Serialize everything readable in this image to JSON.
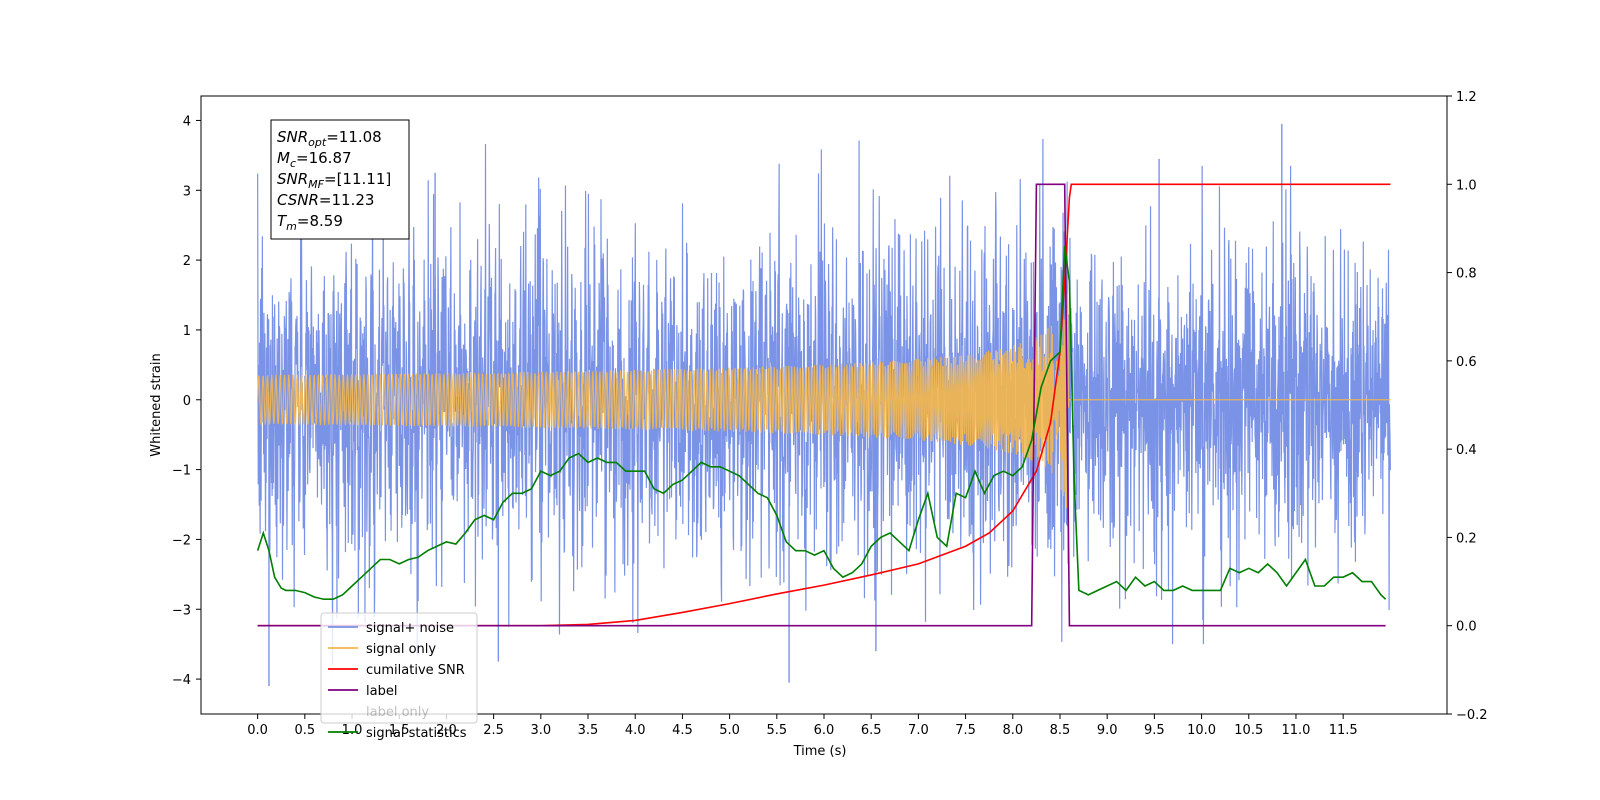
{
  "chart_data": {
    "type": "line",
    "xlabel": "Time (s)",
    "ylabel": "Whitened strain",
    "xlim": [
      -0.6,
      12.6
    ],
    "ylim": [
      -4.5,
      4.35
    ],
    "ylim_right": [
      -0.2,
      1.2
    ],
    "x_ticks": [
      "0.0",
      "0.5",
      "1.0",
      "1.5",
      "2.0",
      "2.5",
      "3.0",
      "3.5",
      "4.0",
      "4.5",
      "5.0",
      "5.5",
      "6.0",
      "6.5",
      "7.0",
      "7.5",
      "8.0",
      "8.5",
      "9.0",
      "9.5",
      "10.0",
      "10.5",
      "11.0",
      "11.5"
    ],
    "y_ticks_left": [
      "4",
      "3",
      "2",
      "1",
      "0",
      "−1",
      "−2",
      "−3",
      "−4"
    ],
    "y_ticks_right": [
      "1.2",
      "1.0",
      "0.8",
      "0.6",
      "0.4",
      "0.2",
      "0.0",
      "−0.2"
    ],
    "legend_position": "lower-left",
    "annotation_box": {
      "lines": [
        {
          "base": "SNR",
          "sub": "opt",
          "value": "=11.08"
        },
        {
          "base": "M",
          "sub": "c",
          "value": "=16.87"
        },
        {
          "base": "SNR",
          "sub": "MF",
          "value": "=[11.11]"
        },
        {
          "base": "CSNR",
          "sub": "",
          "value": "=11.23"
        },
        {
          "base": "T",
          "sub": "m",
          "value": "=8.59"
        }
      ]
    },
    "series": [
      {
        "name": "signal+ noise",
        "axis": "left",
        "color": "#7a93e6",
        "x_range": [
          0.0,
          12.0
        ],
        "envelope_typical": 2.3,
        "envelope_peak": 3.95,
        "min_value": -4.1,
        "max_value": 3.95
      },
      {
        "name": "signal only",
        "axis": "left",
        "color": "#f5b74a",
        "x_range": [
          0.0,
          12.0
        ],
        "merger_time": 8.59,
        "peak_amplitude": 1.85,
        "chirp": true
      },
      {
        "name": "cumilative SNR",
        "axis": "right",
        "color": "#ff0000",
        "x": [
          0.0,
          3.0,
          3.5,
          4.0,
          4.5,
          5.0,
          5.5,
          6.0,
          6.5,
          7.0,
          7.5,
          7.75,
          8.0,
          8.25,
          8.4,
          8.5,
          8.55,
          8.6,
          8.62,
          12.0
        ],
        "y": [
          0.0,
          0.0,
          0.003,
          0.012,
          0.03,
          0.05,
          0.072,
          0.092,
          0.115,
          0.14,
          0.18,
          0.21,
          0.26,
          0.35,
          0.46,
          0.62,
          0.78,
          0.97,
          1.0,
          1.0
        ]
      },
      {
        "name": "label",
        "axis": "right",
        "color": "#800080",
        "x": [
          0.0,
          8.2,
          8.25,
          8.55,
          8.6,
          11.95
        ],
        "y": [
          0.0,
          0.0,
          1.0,
          1.0,
          0.0,
          0.0
        ]
      },
      {
        "name": "label only",
        "axis": "right",
        "color": "#00aa00",
        "hidden": true
      },
      {
        "name": "signal statistics",
        "axis": "right",
        "color": "#007f00",
        "x": [
          0.0,
          0.06,
          0.12,
          0.18,
          0.25,
          0.3,
          0.4,
          0.5,
          0.6,
          0.7,
          0.8,
          0.9,
          1.0,
          1.1,
          1.2,
          1.3,
          1.4,
          1.5,
          1.6,
          1.7,
          1.8,
          1.9,
          2.0,
          2.1,
          2.2,
          2.3,
          2.4,
          2.5,
          2.6,
          2.7,
          2.8,
          2.9,
          3.0,
          3.1,
          3.2,
          3.3,
          3.4,
          3.5,
          3.6,
          3.7,
          3.8,
          3.9,
          4.0,
          4.1,
          4.2,
          4.3,
          4.4,
          4.5,
          4.6,
          4.7,
          4.8,
          4.9,
          5.0,
          5.1,
          5.2,
          5.3,
          5.4,
          5.5,
          5.6,
          5.7,
          5.8,
          5.9,
          6.0,
          6.1,
          6.2,
          6.3,
          6.4,
          6.5,
          6.6,
          6.7,
          6.8,
          6.9,
          7.0,
          7.1,
          7.2,
          7.3,
          7.4,
          7.5,
          7.6,
          7.7,
          7.8,
          7.9,
          8.0,
          8.1,
          8.2,
          8.3,
          8.4,
          8.5,
          8.55,
          8.6,
          8.65,
          8.7,
          8.8,
          8.9,
          9.0,
          9.1,
          9.2,
          9.3,
          9.4,
          9.5,
          9.6,
          9.7,
          9.8,
          9.9,
          10.0,
          10.1,
          10.2,
          10.3,
          10.4,
          10.5,
          10.6,
          10.7,
          10.8,
          10.9,
          11.0,
          11.1,
          11.2,
          11.3,
          11.4,
          11.5,
          11.6,
          11.7,
          11.8,
          11.9,
          11.95
        ],
        "y": [
          0.17,
          0.21,
          0.17,
          0.11,
          0.085,
          0.08,
          0.08,
          0.075,
          0.065,
          0.06,
          0.06,
          0.07,
          0.09,
          0.11,
          0.13,
          0.15,
          0.15,
          0.14,
          0.15,
          0.155,
          0.17,
          0.18,
          0.19,
          0.185,
          0.21,
          0.24,
          0.25,
          0.24,
          0.28,
          0.3,
          0.3,
          0.31,
          0.35,
          0.34,
          0.35,
          0.38,
          0.39,
          0.37,
          0.38,
          0.37,
          0.37,
          0.35,
          0.35,
          0.35,
          0.31,
          0.3,
          0.32,
          0.33,
          0.35,
          0.37,
          0.36,
          0.36,
          0.35,
          0.34,
          0.32,
          0.3,
          0.29,
          0.25,
          0.19,
          0.17,
          0.17,
          0.16,
          0.17,
          0.13,
          0.11,
          0.12,
          0.14,
          0.18,
          0.2,
          0.21,
          0.19,
          0.17,
          0.24,
          0.3,
          0.2,
          0.18,
          0.3,
          0.29,
          0.35,
          0.3,
          0.34,
          0.35,
          0.34,
          0.36,
          0.42,
          0.54,
          0.6,
          0.62,
          0.86,
          0.78,
          0.33,
          0.08,
          0.07,
          0.08,
          0.09,
          0.1,
          0.08,
          0.11,
          0.09,
          0.1,
          0.08,
          0.08,
          0.09,
          0.08,
          0.08,
          0.08,
          0.08,
          0.13,
          0.12,
          0.13,
          0.12,
          0.14,
          0.12,
          0.09,
          0.12,
          0.15,
          0.09,
          0.09,
          0.11,
          0.11,
          0.12,
          0.1,
          0.1,
          0.07,
          0.06
        ]
      }
    ]
  }
}
